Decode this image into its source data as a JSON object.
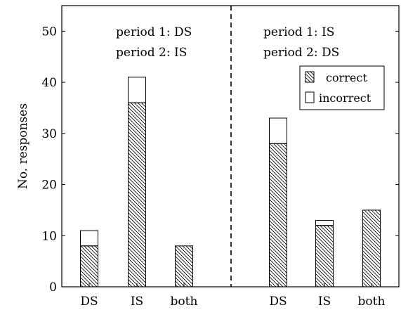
{
  "chart_data": {
    "type": "bar",
    "stacked": true,
    "ylabel": "No. responses",
    "xlabel": "",
    "ylim": [
      0,
      55
    ],
    "yticks": [
      0,
      10,
      20,
      30,
      40,
      50
    ],
    "grid": false,
    "legend_position": "top-right",
    "panels": [
      {
        "annotation": [
          "period 1: DS",
          "period 2: IS"
        ],
        "categories": [
          "DS",
          "IS",
          "both"
        ],
        "correct": [
          8,
          36,
          8
        ],
        "total": [
          11,
          41,
          8
        ]
      },
      {
        "annotation": [
          "period 1: IS",
          "period 2: DS"
        ],
        "categories": [
          "DS",
          "IS",
          "both"
        ],
        "correct": [
          28,
          12,
          15
        ],
        "total": [
          33,
          13,
          15
        ]
      }
    ],
    "series": [
      {
        "name": "correct",
        "fill": "hatched"
      },
      {
        "name": "incorrect",
        "fill": "white"
      }
    ]
  }
}
